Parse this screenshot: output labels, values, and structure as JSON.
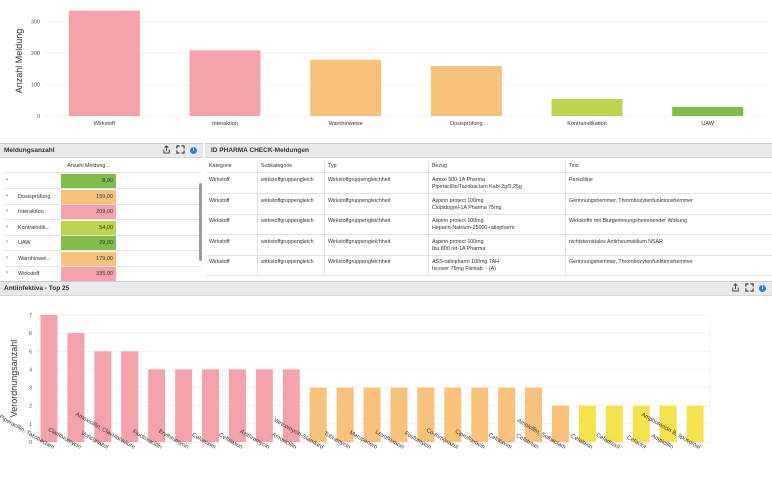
{
  "chart_data": [
    {
      "type": "bar",
      "title": "",
      "ylabel": "Anzahl Meldung",
      "xlabel": "",
      "ylim": [
        0,
        350
      ],
      "yticks": [
        0,
        100,
        200,
        300
      ],
      "categories": [
        "Wirkstoff",
        "Interaktion",
        "Warnhinweise",
        "Dosisprüfung",
        "Kontraindikation",
        "UAW"
      ],
      "values": [
        335,
        209,
        179,
        159,
        54,
        29
      ],
      "colors": [
        "#f4a3ac",
        "#f4a3ac",
        "#f8c27d",
        "#f8c27d",
        "#bdd44f",
        "#7fbc4a"
      ]
    },
    {
      "type": "bar",
      "title": "Antiinfektiva - Top 25",
      "ylabel": "Verordnungsanzahl",
      "xlabel": "",
      "ylim": [
        0,
        7
      ],
      "yticks": [
        0,
        1,
        2,
        3,
        4,
        5,
        6,
        7
      ],
      "categories": [
        "Piperacillin, Tazobactam",
        "Clarithromycin",
        "Voriconazol",
        "Amoxicillin, Clavulansäure",
        "Flucloxacillin",
        "Erythromycin",
        "Cefuroxim",
        "Ceftriaxon",
        "Azithromycin",
        "Amoxicillin",
        "Vancomycin-Standard",
        "Tobramycin",
        "Meropenem",
        "Levofloxacin",
        "Fosfomycin",
        "Co-trimoxazol",
        "Ciprofloxacin",
        "Cefotaxim",
        "Cefotetan",
        "Ampicillin, Sulbactam",
        "Cefalexin",
        "Cefadroxil",
        "Cefaclor",
        "Ampicillin",
        "Amphotericin B, liposomal"
      ],
      "values": [
        7,
        6,
        5,
        5,
        4,
        4,
        4,
        4,
        4,
        4,
        3,
        3,
        3,
        3,
        3,
        3,
        3,
        3,
        3,
        2,
        2,
        2,
        2,
        2,
        2
      ],
      "colors": [
        "#f4a3ac",
        "#f4a3ac",
        "#f4a3ac",
        "#f4a3ac",
        "#f4a3ac",
        "#f4a3ac",
        "#f4a3ac",
        "#f4a3ac",
        "#f4a3ac",
        "#f4a3ac",
        "#f8c27d",
        "#f8c27d",
        "#f8c27d",
        "#f8c27d",
        "#f8c27d",
        "#f8c27d",
        "#f8c27d",
        "#f8c27d",
        "#f8c27d",
        "#f8c27d",
        "#f6e24b",
        "#f6e24b",
        "#f6e24b",
        "#f6e24b",
        "#f6e24b"
      ]
    }
  ],
  "panels": {
    "meldungsanzahl": "Meldungsanzahl",
    "pharma_check": "ID PHARMA CHECK-Meldungen",
    "antiinfektiva": "Antiinfektiva - Top 25"
  },
  "meldungs_table": {
    "header": "Anzahl Meldung...",
    "rows": [
      {
        "label": "",
        "value": "8,00",
        "color": "#7fbc4a"
      },
      {
        "label": "Dosisprüfung",
        "value": "159,00",
        "color": "#f8c27d"
      },
      {
        "label": "Interaktion",
        "value": "209,00",
        "color": "#f4a3ac"
      },
      {
        "label": "Kontraindik...",
        "value": "54,00",
        "color": "#bdd44f"
      },
      {
        "label": "UAW",
        "value": "29,00",
        "color": "#7fbc4a"
      },
      {
        "label": "Warnhinwei...",
        "value": "179,00",
        "color": "#f8c27d"
      },
      {
        "label": "Wirkstoff",
        "value": "335,00",
        "color": "#f4a3ac"
      }
    ]
  },
  "pharma_table": {
    "headers": [
      "Kategorie",
      "Subkategorie",
      "Typ",
      "Bezug",
      "Text"
    ],
    "rows": [
      {
        "kategorie": "Wirkstoff",
        "sub": "wirkstoffgruppengleich",
        "typ": "Wirkstoffgruppengleichheit",
        "bezug1": "Amoxi 500-1A Pharma",
        "bezug2": "Piperacillin/Tazobactam Kabi 2g/0,25g",
        "text": "Penicilline"
      },
      {
        "kategorie": "Wirkstoff",
        "sub": "wirkstoffgruppengleich",
        "typ": "Wirkstoffgruppengleichheit",
        "bezug1": "Aspirin protect 100mg",
        "bezug2": "Clopidogrel-1A Pharma 75mg",
        "text": "Gerinnungshemmer, Thrombozytenfunktionshemmer"
      },
      {
        "kategorie": "Wirkstoff",
        "sub": "wirkstoffgruppengleich",
        "typ": "Wirkstoffgruppengleichheit",
        "bezug1": "Aspirin protect 100mg",
        "bezug2": "Heparin-Natrium-25000-ratiopharm",
        "text": "Wirkstoffe mit Blutgerinnungshemmender Wirkung"
      },
      {
        "kategorie": "Wirkstoff",
        "sub": "wirkstoffgruppengleich",
        "typ": "Wirkstoffgruppengleichheit",
        "bezug1": "Aspirin protect 100mg",
        "bezug2": "Ibu 800 ret-1A Pharma",
        "text": "nichtsteroidales Antirheumatikum NSAR"
      },
      {
        "kategorie": "Wirkstoff",
        "sub": "wirkstoffgruppengleich",
        "typ": "Wirkstoffgruppengleichheit",
        "bezug1": "ASS-ratiopharm 100mg TAH",
        "bezug2": "Iscover 75mg Filmtab. - (A)",
        "text": "Gerinnungshemmer, Thrombozytenfunktionshemmer"
      }
    ]
  }
}
